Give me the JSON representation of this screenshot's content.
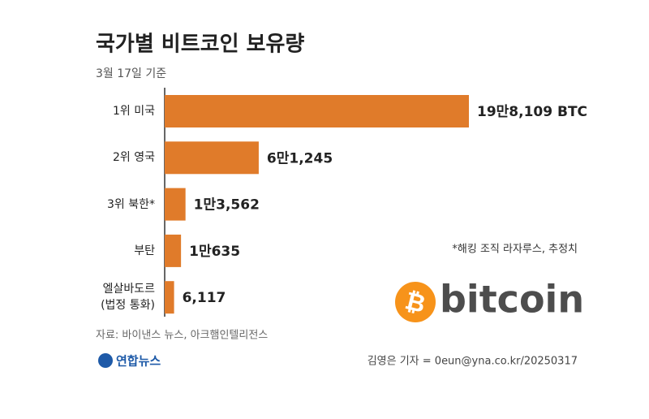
{
  "chart_data": {
    "type": "bar",
    "orientation": "horizontal",
    "title": "국가별 비트코인 보유량",
    "subtitle": "3월 17일 기준",
    "categories": [
      "1위 미국",
      "2위 영국",
      "3위 북한*",
      "부탄",
      "엘살바도르\n(법정 통화)"
    ],
    "values": [
      198109,
      61245,
      13562,
      10635,
      6117
    ],
    "value_labels": [
      "19만8,109 BTC",
      "6만1,245",
      "1만3,562",
      "1만635",
      "6,117"
    ],
    "color": "#e07b2a",
    "note": "*해킹 조직 라자루스, 추정치",
    "logo_symbol": "₿",
    "logo_text": "bitcoin",
    "source": "자료: 바이낸스 뉴스, 아크햄인텔리전스",
    "agency": "연합뉴스",
    "credit": "김영은 기자 = 0eun@yna.co.kr/20250317"
  }
}
